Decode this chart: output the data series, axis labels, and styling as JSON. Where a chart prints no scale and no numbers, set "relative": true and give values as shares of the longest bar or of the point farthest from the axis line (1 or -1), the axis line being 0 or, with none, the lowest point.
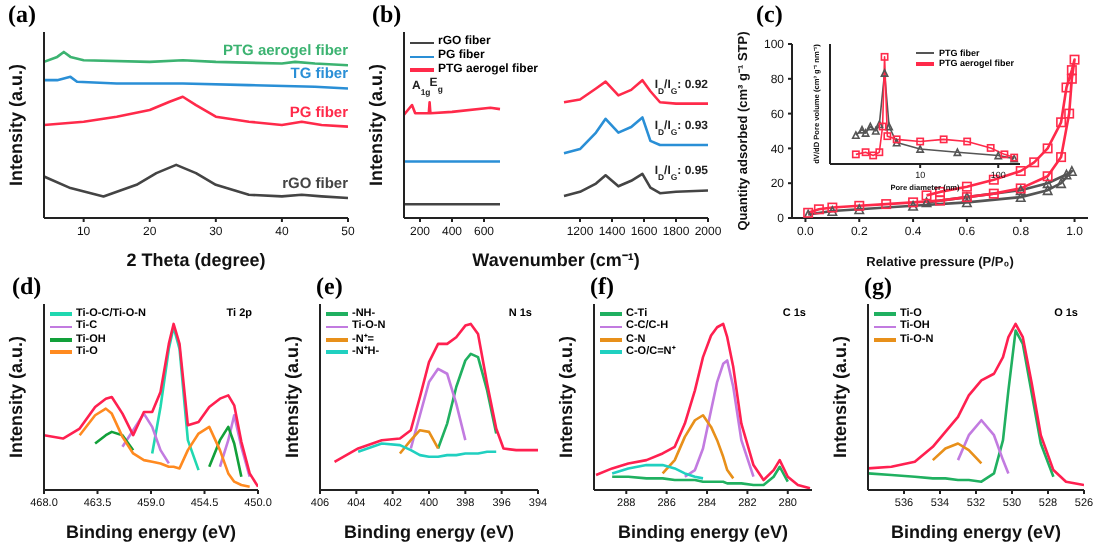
{
  "chart_data": [
    {
      "type": "line",
      "title": "(a)",
      "xlabel": "2 Theta (degree)",
      "ylabel": "Intensity (a.u.)",
      "xlim": [
        4,
        50
      ],
      "xticks": [
        10,
        20,
        30,
        40,
        50
      ],
      "relative": true,
      "legend": false,
      "series": [
        {
          "name": "rGO fiber",
          "color": "#444444",
          "x": [
            4,
            8,
            13,
            18,
            21,
            24,
            27,
            30,
            35,
            40,
            43,
            46,
            50
          ],
          "values": [
            0.25,
            0.18,
            0.13,
            0.2,
            0.27,
            0.32,
            0.27,
            0.2,
            0.14,
            0.13,
            0.14,
            0.13,
            0.12
          ]
        },
        {
          "name": "PG fiber",
          "color": "#ff2a4a",
          "x": [
            4,
            10,
            15,
            20,
            23,
            25,
            27,
            30,
            35,
            40,
            43,
            46,
            50
          ],
          "values": [
            0.56,
            0.58,
            0.61,
            0.65,
            0.7,
            0.73,
            0.68,
            0.61,
            0.58,
            0.56,
            0.58,
            0.56,
            0.55
          ]
        },
        {
          "name": "TG fiber",
          "color": "#2a8fd6",
          "x": [
            4,
            6,
            8,
            9,
            15,
            25,
            35,
            45,
            50
          ],
          "values": [
            0.83,
            0.83,
            0.85,
            0.82,
            0.81,
            0.81,
            0.8,
            0.79,
            0.78
          ]
        },
        {
          "name": "PTG aerogel fiber",
          "color": "#3cb371",
          "x": [
            4,
            6,
            7,
            8,
            10,
            20,
            25,
            30,
            40,
            42,
            45,
            50
          ],
          "values": [
            0.94,
            0.97,
            1.0,
            0.97,
            0.95,
            0.94,
            0.95,
            0.94,
            0.93,
            0.94,
            0.93,
            0.92
          ]
        }
      ]
    },
    {
      "type": "line",
      "title": "(b)",
      "xlabel": "Wavenumber (cm⁻¹)",
      "ylabel": "Intensity (a.u.)",
      "xlim": [
        100,
        2000
      ],
      "xticks": [
        200,
        400,
        600,
        1200,
        1400,
        1600,
        1800,
        2000
      ],
      "relative": true,
      "legend": "top left",
      "series": [
        {
          "name": "rGO fiber",
          "color": "#444444",
          "x": [
            100,
            700,
            900,
            1100,
            1200,
            1300,
            1360,
            1440,
            1520,
            1590,
            1640,
            1700,
            1800,
            2000
          ],
          "values": [
            0.1,
            0.1,
            null,
            0.16,
            0.19,
            0.25,
            0.31,
            0.23,
            0.27,
            0.32,
            0.22,
            0.18,
            0.19,
            0.2
          ]
        },
        {
          "name": "PG fiber",
          "color": "#2a8fd6",
          "x": [
            100,
            700,
            900,
            1100,
            1200,
            1300,
            1360,
            1440,
            1520,
            1590,
            1640,
            1700,
            1800,
            2000
          ],
          "values": [
            0.41,
            0.41,
            null,
            0.47,
            0.5,
            0.62,
            0.72,
            0.62,
            0.66,
            0.73,
            0.56,
            0.53,
            0.53,
            0.53
          ]
        },
        {
          "name": "PTG aerogel fiber",
          "color": "#ff2a4a",
          "x": [
            100,
            150,
            170,
            250,
            255,
            260,
            265,
            400,
            640,
            700,
            900,
            1100,
            1200,
            1300,
            1360,
            1440,
            1520,
            1590,
            1640,
            1700,
            1800,
            2000
          ],
          "values": [
            0.75,
            0.82,
            0.76,
            0.76,
            0.76,
            0.84,
            0.76,
            0.77,
            0.8,
            0.79,
            null,
            0.84,
            0.86,
            0.94,
            0.99,
            0.89,
            0.93,
            1.0,
            0.92,
            0.84,
            0.83,
            0.83
          ]
        }
      ],
      "annotations": [
        {
          "text": "A$_{1g}$",
          "x": 150,
          "y": 0.82
        },
        {
          "text": "E$_{g}$",
          "x": 260,
          "y": 0.84
        },
        {
          "text": "I$_{D}$/I$_{G}$: 0.92",
          "x": 2000,
          "y": 0.83
        },
        {
          "text": "I$_{D}$/I$_{G}$: 0.93",
          "x": 2000,
          "y": 0.53
        },
        {
          "text": "I$_{D}$/I$_{G}$: 0.95",
          "x": 2000,
          "y": 0.2
        }
      ]
    },
    {
      "type": "line",
      "title": "(c)",
      "xlabel": "Relative pressure (P/P₀)",
      "ylabel": "Quantity adsorbed (cm³ g⁻¹ STP)",
      "xlim": [
        -0.05,
        1.05
      ],
      "xticks": [
        {
          "value": 0,
          "label": "0.0"
        },
        0.2,
        0.4,
        0.6,
        0.8,
        {
          "value": 1,
          "label": "1.0"
        }
      ],
      "ylim": [
        0,
        100
      ],
      "yticks": [
        0,
        20,
        40,
        60,
        80,
        100
      ],
      "legend": false,
      "series": [
        {
          "color": "#555555",
          "marker": "triangle",
          "x": [
            0.01,
            0.1,
            0.2,
            0.4,
            0.6,
            0.8,
            0.9,
            0.95,
            0.99,
            0.97,
            0.9,
            0.8,
            0.6,
            0.45
          ],
          "values": [
            2,
            4,
            5,
            7,
            9,
            12,
            16,
            20,
            27,
            25,
            20,
            16,
            12,
            9
          ]
        },
        {
          "color": "#ff2a4a",
          "marker": "square",
          "x": [
            0.01,
            0.05,
            0.1,
            0.2,
            0.3,
            0.4,
            0.5,
            0.6,
            0.7,
            0.8,
            0.9,
            0.95,
            0.98,
            0.99,
            1.0,
            0.99,
            0.97,
            0.95,
            0.9,
            0.85,
            0.8,
            0.7,
            0.6,
            0.5,
            0.45
          ],
          "values": [
            3,
            5,
            6,
            7,
            8,
            9,
            10,
            12,
            14,
            17,
            24,
            35,
            60,
            80,
            91,
            85,
            75,
            55,
            40,
            32,
            27,
            22,
            18,
            15,
            13
          ]
        }
      ]
    },
    {
      "type": "line",
      "xlabel": "Pore diameter (nm)",
      "ylabel": "dV/dD Pore volume (cm³ g⁻¹ nm⁻¹)",
      "log": "x",
      "xlim": [
        0.7,
        190
      ],
      "xticks": [
        10,
        100
      ],
      "relative": true,
      "legend": "top right",
      "series": [
        {
          "name": "PTG fiber",
          "color": "#555555",
          "marker": "triangle",
          "x": [
            1.5,
            1.8,
            2.0,
            2.3,
            2.7,
            3.0,
            3.5,
            4.0,
            5,
            10,
            30,
            100,
            160
          ],
          "values": [
            0.27,
            0.32,
            0.29,
            0.35,
            0.31,
            0.37,
            0.85,
            0.35,
            0.2,
            0.14,
            0.11,
            0.08,
            0.05
          ]
        },
        {
          "name": "PTG aerogel fiber",
          "color": "#ff2a4a",
          "marker": "square",
          "x": [
            1.5,
            2.0,
            2.5,
            3.0,
            3.3,
            3.5,
            3.8,
            5,
            10,
            20,
            40,
            80,
            120,
            160
          ],
          "values": [
            0.09,
            0.11,
            0.08,
            0.11,
            0.35,
            1.0,
            0.26,
            0.23,
            0.21,
            0.23,
            0.21,
            0.15,
            0.09,
            0.06
          ]
        }
      ]
    },
    {
      "type": "line",
      "title": "(d)",
      "xlabel": "Binding energy (eV)",
      "ylabel": "Intensity (a.u.)",
      "xlim": [
        468,
        450
      ],
      "xticks": [
        {
          "value": 468,
          "label": "468.0"
        },
        {
          "value": 463.5,
          "label": "463.5"
        },
        {
          "value": 459,
          "label": "459.0"
        },
        {
          "value": 454.5,
          "label": "454.5"
        },
        {
          "value": 450,
          "label": "450.0"
        }
      ],
      "relative": true,
      "legend": "top left",
      "annotations": [
        "Ti 2p"
      ],
      "x": [
        468.0,
        466.4,
        465.0,
        463.7,
        462.8,
        462.3,
        461.4,
        460.5,
        459.6,
        458.9,
        458.2,
        457.5,
        457.1,
        456.6,
        455.9,
        455.0,
        454.1,
        453.2,
        452.5,
        452.0,
        451.4,
        450.7,
        450.0
      ],
      "series": [
        {
          "name": "Ti-O-C/Ti-O-N",
          "color": "#20d8b0",
          "values": [
            null,
            null,
            null,
            null,
            null,
            null,
            null,
            null,
            null,
            0.22,
            0.5,
            0.85,
            0.98,
            0.85,
            0.3,
            0.12,
            null,
            null,
            null,
            null,
            null,
            null,
            null
          ]
        },
        {
          "name": "Ti-C",
          "color": "#c27be0",
          "values": [
            null,
            null,
            null,
            null,
            null,
            null,
            0.26,
            0.36,
            0.46,
            0.38,
            0.24,
            0.16,
            null,
            null,
            null,
            null,
            null,
            0.14,
            0.3,
            0.45,
            0.26,
            0.08,
            null
          ]
        },
        {
          "name": "Ti-OH",
          "color": "#12a03a",
          "values": [
            null,
            null,
            null,
            0.28,
            0.33,
            0.35,
            0.33,
            0.24,
            null,
            null,
            null,
            null,
            null,
            null,
            null,
            null,
            0.14,
            0.3,
            0.38,
            0.28,
            0.08,
            null,
            null
          ]
        },
        {
          "name": "Ti-O",
          "color": "#ff8a20",
          "values": [
            null,
            null,
            0.33,
            0.45,
            0.49,
            0.46,
            0.32,
            0.22,
            0.18,
            0.17,
            0.16,
            0.14,
            0.14,
            0.13,
            0.24,
            0.34,
            0.38,
            0.24,
            0.1,
            0.05,
            0.03,
            0.02,
            null
          ]
        },
        {
          "color": "#ff2050",
          "values": [
            0.33,
            0.31,
            0.37,
            0.5,
            0.55,
            0.56,
            0.46,
            0.33,
            0.47,
            0.47,
            0.59,
            0.88,
            1.0,
            0.88,
            0.39,
            0.41,
            0.5,
            0.55,
            0.57,
            0.51,
            0.29,
            0.1,
            0.02
          ]
        }
      ]
    },
    {
      "type": "line",
      "title": "(e)",
      "xlabel": "Binding energy (eV)",
      "ylabel": "Intensity (a.u.)",
      "xlim": [
        406,
        394
      ],
      "xticks": [
        406,
        404,
        402,
        400,
        398,
        396,
        394
      ],
      "relative": true,
      "legend": "top left",
      "annotations": [
        "N 1s"
      ],
      "x": [
        405.2,
        403.9,
        402.6,
        401.6,
        401.0,
        400.5,
        400.0,
        399.5,
        399.0,
        398.5,
        398.0,
        397.7,
        397.3,
        396.8,
        396.3,
        395.9,
        395.2,
        394.6,
        394.0
      ],
      "series": [
        {
          "name": "-NH-",
          "color": "#20b060",
          "values": [
            null,
            null,
            null,
            null,
            null,
            null,
            null,
            0.25,
            0.4,
            0.62,
            0.78,
            0.82,
            0.8,
            0.6,
            0.34,
            null,
            null,
            null,
            null
          ]
        },
        {
          "name": "Ti-O-N",
          "color": "#c27be0",
          "values": [
            null,
            null,
            null,
            null,
            0.25,
            0.45,
            0.65,
            0.73,
            0.7,
            0.52,
            0.3,
            null,
            null,
            null,
            null,
            null,
            null,
            null,
            null
          ]
        },
        {
          "name": "-N⁺=",
          "color": "#e8901a",
          "values": [
            null,
            null,
            null,
            0.22,
            0.3,
            0.36,
            0.35,
            0.25,
            null,
            null,
            null,
            null,
            null,
            null,
            null,
            null,
            null,
            null,
            null
          ]
        },
        {
          "name": "-N⁺H-",
          "color": "#20d0c0",
          "values": [
            null,
            0.23,
            0.28,
            0.27,
            0.24,
            0.21,
            0.2,
            0.2,
            0.21,
            0.21,
            0.22,
            0.22,
            0.22,
            0.23,
            0.23,
            null,
            null,
            null,
            null
          ]
        },
        {
          "color": "#ff2050",
          "values": [
            0.17,
            0.25,
            0.3,
            0.31,
            0.36,
            0.56,
            0.77,
            0.88,
            0.88,
            0.92,
            0.99,
            1.0,
            0.94,
            0.64,
            0.37,
            0.25,
            0.24,
            0.24,
            0.24
          ]
        }
      ]
    },
    {
      "type": "line",
      "title": "(f)",
      "xlabel": "Binding energy (eV)",
      "ylabel": "Intensity (a.u.)",
      "xlim": [
        289.6,
        278.8
      ],
      "xticks": [
        288,
        286,
        284,
        282,
        280
      ],
      "relative": true,
      "legend": "top left",
      "annotations": [
        "C 1s"
      ],
      "x": [
        289.5,
        288.7,
        287.9,
        287.0,
        286.2,
        285.6,
        285.1,
        284.6,
        284.2,
        283.8,
        283.5,
        283.2,
        283.0,
        282.7,
        282.3,
        281.7,
        281.2,
        280.7,
        280.4,
        280.0,
        279.5,
        278.9
      ],
      "series": [
        {
          "name": "C-Ti",
          "color": "#20b060",
          "values": [
            null,
            0.08,
            0.08,
            0.07,
            0.07,
            0.06,
            0.06,
            0.06,
            0.05,
            0.05,
            0.05,
            0.05,
            0.04,
            0.04,
            0.04,
            0.03,
            0.03,
            0.08,
            0.14,
            0.05,
            null,
            null
          ]
        },
        {
          "name": "C-C/C-H",
          "color": "#c27be0",
          "values": [
            null,
            null,
            null,
            null,
            null,
            null,
            0.08,
            0.12,
            0.25,
            0.48,
            0.65,
            0.76,
            0.78,
            0.62,
            0.3,
            0.08,
            null,
            null,
            null,
            null,
            null,
            null
          ]
        },
        {
          "name": "C-N",
          "color": "#e8901a",
          "values": [
            null,
            null,
            null,
            null,
            0.1,
            0.18,
            0.32,
            0.42,
            0.45,
            0.38,
            0.3,
            0.2,
            0.12,
            0.07,
            null,
            null,
            null,
            null,
            null,
            null,
            null,
            null
          ]
        },
        {
          "name": "C-O/C=N⁺",
          "color": "#20d0c0",
          "values": [
            null,
            0.1,
            0.13,
            0.15,
            0.15,
            0.13,
            0.1,
            0.08,
            0.07,
            null,
            null,
            null,
            null,
            null,
            null,
            null,
            null,
            null,
            null,
            null,
            null,
            null
          ]
        },
        {
          "color": "#ff2050",
          "values": [
            0.09,
            0.13,
            0.16,
            0.18,
            0.22,
            0.26,
            0.4,
            0.6,
            0.8,
            0.93,
            0.98,
            1.0,
            0.92,
            0.74,
            0.4,
            0.15,
            0.06,
            0.12,
            0.18,
            0.08,
            0.03,
            0.01
          ]
        }
      ]
    },
    {
      "type": "line",
      "title": "(g)",
      "xlabel": "Binding energy (eV)",
      "ylabel": "Intensity (a.u.)",
      "xlim": [
        538,
        526
      ],
      "xticks": [
        536,
        534,
        532,
        530,
        528,
        526
      ],
      "relative": true,
      "legend": "top left",
      "annotations": [
        "O 1s"
      ],
      "x": [
        538.0,
        536.7,
        535.4,
        534.4,
        533.7,
        533.0,
        532.4,
        531.7,
        531.0,
        530.5,
        530.2,
        529.8,
        529.4,
        528.9,
        528.4,
        527.7,
        527.0,
        526.0
      ],
      "series": [
        {
          "name": "Ti-O",
          "color": "#20b060",
          "values": [
            0.1,
            0.09,
            0.08,
            0.07,
            0.07,
            0.06,
            0.06,
            0.05,
            0.1,
            0.3,
            0.6,
            0.96,
            0.88,
            0.58,
            0.28,
            0.08,
            null,
            null
          ]
        },
        {
          "name": "Ti-OH",
          "color": "#c27be0",
          "values": [
            null,
            null,
            null,
            null,
            null,
            0.18,
            0.33,
            0.42,
            0.33,
            0.18,
            0.1,
            null,
            null,
            null,
            null,
            null,
            null,
            null
          ]
        },
        {
          "name": "Ti-O-N",
          "color": "#e8901a",
          "values": [
            null,
            null,
            null,
            0.18,
            0.25,
            0.28,
            0.24,
            0.16,
            null,
            null,
            null,
            null,
            null,
            null,
            null,
            null,
            null,
            null
          ]
        },
        {
          "color": "#ff2050",
          "values": [
            0.13,
            0.14,
            0.17,
            0.26,
            0.35,
            0.44,
            0.57,
            0.66,
            0.7,
            0.8,
            0.92,
            1.0,
            0.92,
            0.64,
            0.33,
            0.12,
            0.05,
            0.03
          ]
        }
      ]
    }
  ]
}
